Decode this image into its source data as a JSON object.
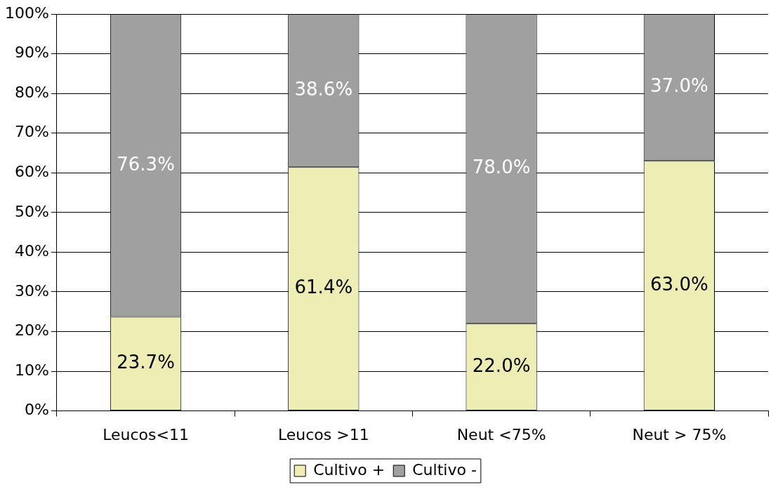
{
  "chart_data": {
    "type": "bar",
    "stacked": true,
    "categories": [
      "Leucos<11",
      "Leucos >11",
      "Neut <75%",
      "Neut > 75%"
    ],
    "series": [
      {
        "name": "Cultivo +",
        "color": "#eeeeb4",
        "values": [
          23.7,
          61.4,
          22.0,
          63.0
        ],
        "value_labels": [
          "23.7%",
          "61.4%",
          "22.0%",
          "63.0%"
        ]
      },
      {
        "name": "Cultivo -",
        "color": "#a0a0a0",
        "values": [
          76.3,
          38.6,
          78.0,
          37.0
        ],
        "value_labels": [
          "76.3%",
          "38.6%",
          "78.0%",
          "37.0%"
        ]
      }
    ],
    "ylim": [
      0,
      100
    ],
    "yticks": [
      {
        "value": 0,
        "label": "0%"
      },
      {
        "value": 10,
        "label": "10%"
      },
      {
        "value": 20,
        "label": "20%"
      },
      {
        "value": 30,
        "label": "30%"
      },
      {
        "value": 40,
        "label": "40%"
      },
      {
        "value": 50,
        "label": "50%"
      },
      {
        "value": 60,
        "label": "60%"
      },
      {
        "value": 70,
        "label": "70%"
      },
      {
        "value": 80,
        "label": "80%"
      },
      {
        "value": 90,
        "label": "90%"
      },
      {
        "value": 100,
        "label": "100%"
      }
    ],
    "grid": "y",
    "legend": "bottom"
  }
}
